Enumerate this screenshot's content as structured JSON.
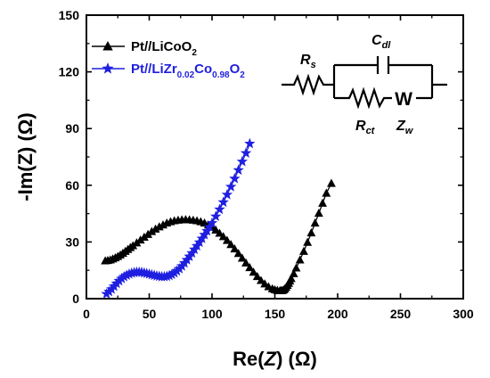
{
  "chart_data": {
    "type": "line",
    "xlabel_parts": [
      "Re(",
      "Z",
      ") (Ω)"
    ],
    "ylabel_parts": [
      "-Im(",
      "Z",
      ") (Ω)"
    ],
    "xlim": [
      0,
      300
    ],
    "ylim": [
      0,
      150
    ],
    "xticks": [
      "0",
      "50",
      "100",
      "150",
      "200",
      "250",
      "300"
    ],
    "yticks": [
      "0",
      "30",
      "60",
      "90",
      "120",
      "150"
    ],
    "legend_position": "top-left",
    "series": [
      {
        "name": "Pt//LiCoO2",
        "name_parts": [
          "Pt//LiCoO",
          "2"
        ],
        "color": "#000000",
        "marker": "triangle",
        "x": [
          15,
          17,
          19,
          21,
          23,
          25,
          27,
          29,
          31,
          33,
          35,
          37,
          40,
          43,
          46,
          49,
          52,
          55,
          58,
          61,
          64,
          67,
          70,
          73,
          76,
          79,
          82,
          85,
          88,
          91,
          94,
          97,
          100,
          103,
          106,
          109,
          112,
          115,
          118,
          121,
          124,
          127,
          130,
          133,
          136,
          139,
          142,
          145,
          148,
          150,
          152,
          154,
          155,
          156,
          157,
          158,
          159,
          160,
          161,
          162,
          163,
          165,
          167,
          170,
          173,
          176,
          179,
          182,
          185,
          188,
          191,
          195
        ],
        "y": [
          20,
          20.2,
          20.5,
          21,
          21.6,
          22.3,
          23.1,
          24,
          25,
          26,
          27,
          28,
          29.5,
          31,
          32.5,
          34,
          35.5,
          36.8,
          38,
          39,
          40,
          40.7,
          41.2,
          41.5,
          41.7,
          41.8,
          41.7,
          41.5,
          41.2,
          40.7,
          40,
          39,
          37.8,
          36.3,
          34.6,
          32.8,
          30.8,
          28.6,
          26.3,
          23.9,
          21.4,
          18.9,
          16.4,
          14,
          11.7,
          9.6,
          7.8,
          6.3,
          5.2,
          4.7,
          4.4,
          4.2,
          4.2,
          4.3,
          4.6,
          5.2,
          6,
          7,
          8.1,
          9.3,
          10.6,
          13.2,
          16.2,
          20.5,
          25,
          29.8,
          34.8,
          40,
          45.2,
          50.5,
          55.8,
          61
        ]
      },
      {
        "name": "Pt//LiZr0.02Co0.98O2",
        "name_parts": [
          "Pt//LiZr",
          "0.02",
          "Co",
          "0.98",
          "O",
          "2"
        ],
        "color": "#1f1fe0",
        "marker": "star",
        "x": [
          16,
          18,
          20,
          22,
          24,
          26,
          28,
          30,
          32,
          34,
          36,
          38,
          40,
          42,
          44,
          46,
          48,
          50,
          52,
          54,
          56,
          58,
          60,
          62,
          64,
          66,
          68,
          70,
          72,
          74,
          76,
          78,
          80,
          82,
          84,
          86,
          88,
          90,
          92,
          94,
          96,
          98,
          100,
          103,
          106,
          109,
          112,
          115,
          118,
          121,
          124,
          127,
          130
        ],
        "y": [
          2.5,
          3.7,
          5,
          6.5,
          8,
          9.4,
          10.6,
          11.6,
          12.4,
          13,
          13.5,
          13.8,
          14,
          14,
          13.9,
          13.6,
          13.3,
          13,
          12.6,
          12.3,
          12,
          11.8,
          11.6,
          11.6,
          11.8,
          12.2,
          12.8,
          13.6,
          14.6,
          15.8,
          17.2,
          18.8,
          20.5,
          22.3,
          24.1,
          26,
          27.9,
          29.8,
          31.8,
          33.8,
          35.8,
          37.9,
          40,
          43.5,
          47.2,
          51,
          55,
          59.2,
          63.5,
          68,
          72.5,
          77,
          82
        ]
      }
    ],
    "circuit_labels": {
      "rs": {
        "main": "R",
        "sub": "s"
      },
      "cdl": {
        "main": "C",
        "sub": "dl"
      },
      "rct": {
        "main": "R",
        "sub": "ct"
      },
      "zw": {
        "main": "Z",
        "sub": "w"
      },
      "warburg_symbol": "W"
    }
  }
}
